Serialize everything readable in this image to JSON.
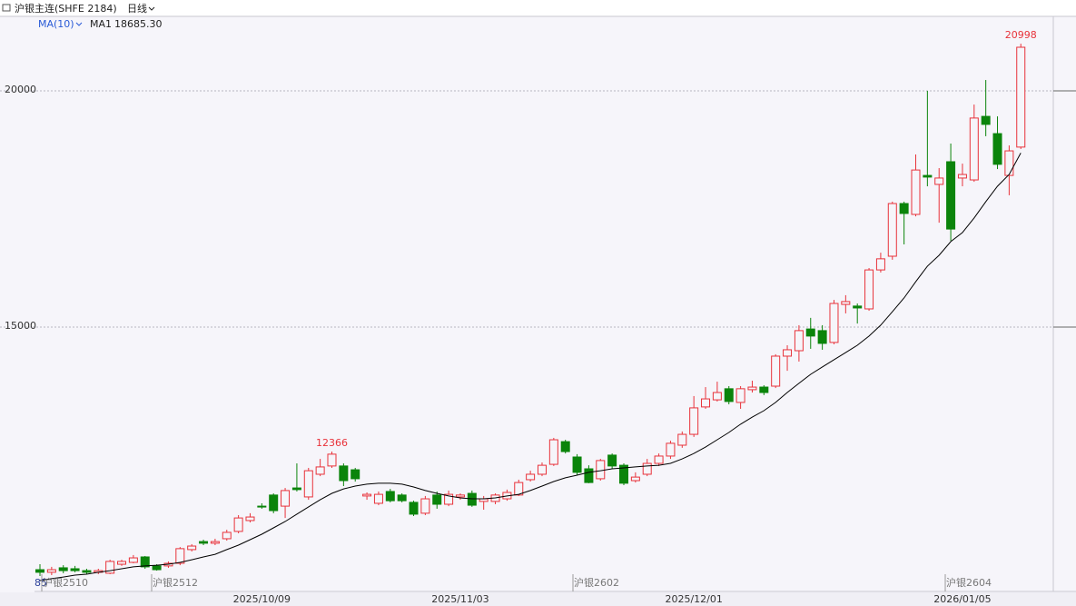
{
  "chart_data": {
    "type": "candlestick",
    "title": "沪银主连(SHFE 2184)",
    "period": "日线",
    "indicator": "MA(10)",
    "ma_name": "MA1",
    "ma_label": "18685.30",
    "categories": [
      null,
      null,
      null,
      null,
      null,
      null,
      null,
      null,
      null,
      null,
      null,
      null,
      null,
      null,
      null,
      null,
      null,
      null,
      null,
      "2025/10/09",
      null,
      null,
      null,
      null,
      null,
      null,
      null,
      null,
      null,
      null,
      null,
      null,
      null,
      null,
      null,
      null,
      "2025/11/03",
      null,
      null,
      null,
      null,
      null,
      null,
      null,
      null,
      null,
      null,
      null,
      null,
      null,
      null,
      null,
      null,
      null,
      null,
      null,
      "2025/12/01",
      null,
      null,
      null,
      null,
      null,
      null,
      null,
      null,
      null,
      null,
      null,
      null,
      null,
      null,
      null,
      null,
      null,
      null,
      null,
      null,
      null,
      null,
      "2026/01/05",
      null,
      null,
      null,
      null,
      null
    ],
    "open": [
      9865,
      9810,
      9905,
      9885,
      9845,
      9810,
      9790,
      9980,
      10020,
      10135,
      9945,
      9945,
      10000,
      10290,
      10460,
      10425,
      10520,
      10675,
      10905,
      11210,
      11445,
      11210,
      11595,
      11405,
      11885,
      12060,
      12060,
      11980,
      11425,
      11270,
      11520,
      11445,
      11290,
      11060,
      11445,
      11250,
      11405,
      11480,
      11310,
      11310,
      11365,
      11445,
      11770,
      11885,
      12095,
      12575,
      12250,
      12000,
      11790,
      12290,
      12075,
      11750,
      11885,
      12115,
      12270,
      12500,
      12730,
      13310,
      13460,
      13695,
      13405,
      13675,
      13730,
      13750,
      14385,
      14500,
      14960,
      14925,
      14675,
      15480,
      15445,
      15385,
      16210,
      16500,
      17615,
      17385,
      18210,
      18020,
      18500,
      18155,
      18115,
      19460,
      19095,
      18210,
      18810
    ],
    "high": [
      9980,
      9925,
      9960,
      9945,
      9885,
      9885,
      10075,
      10075,
      10175,
      10155,
      9980,
      10040,
      10345,
      10405,
      10500,
      10520,
      10710,
      11020,
      11060,
      11270,
      11480,
      11595,
      12115,
      12020,
      12210,
      12366,
      12115,
      12020,
      11500,
      11520,
      11575,
      11480,
      11325,
      11425,
      11520,
      11540,
      11480,
      11540,
      11425,
      11480,
      11560,
      11770,
      11960,
      12135,
      12655,
      12615,
      12310,
      12075,
      12210,
      12325,
      12115,
      11925,
      12210,
      12325,
      12595,
      12790,
      13540,
      13730,
      13845,
      13750,
      13750,
      13865,
      13770,
      14425,
      14615,
      15040,
      15195,
      15040,
      15575,
      15675,
      15500,
      16250,
      16575,
      17655,
      17655,
      18655,
      20000,
      18365,
      18885,
      18460,
      19710,
      20230,
      19460,
      18845,
      20998
    ],
    "low": [
      9730,
      9750,
      9790,
      9810,
      9770,
      9770,
      9770,
      9945,
      10000,
      9885,
      9845,
      9905,
      9960,
      10250,
      10385,
      10385,
      10480,
      10635,
      10865,
      11155,
      11060,
      10960,
      11520,
      11345,
      11845,
      12020,
      11635,
      11730,
      11345,
      11230,
      11290,
      11290,
      11000,
      11020,
      11155,
      11210,
      11345,
      11195,
      11135,
      11250,
      11325,
      11425,
      11730,
      11845,
      12060,
      12325,
      11865,
      11695,
      11750,
      12000,
      11655,
      11710,
      11845,
      12060,
      12210,
      12445,
      12675,
      13270,
      13425,
      13365,
      13270,
      13615,
      13560,
      13710,
      14075,
      14270,
      14540,
      14520,
      14635,
      15290,
      15075,
      15345,
      16155,
      16425,
      16750,
      17345,
      17980,
      17210,
      16825,
      17980,
      18075,
      19040,
      18345,
      17790,
      18770
    ],
    "close": [
      9810,
      9865,
      9845,
      9845,
      9810,
      9845,
      10040,
      10040,
      10115,
      9925,
      9865,
      10000,
      10310,
      10365,
      10425,
      10460,
      10655,
      10960,
      10980,
      11195,
      11115,
      11540,
      11560,
      11960,
      12040,
      12310,
      11750,
      11790,
      11460,
      11460,
      11325,
      11325,
      11040,
      11365,
      11250,
      11460,
      11445,
      11230,
      11365,
      11445,
      11500,
      11710,
      11885,
      12075,
      12615,
      12365,
      11925,
      11710,
      12175,
      12060,
      11695,
      11825,
      12115,
      12270,
      12540,
      12730,
      13290,
      13480,
      13615,
      13425,
      13695,
      13730,
      13615,
      14385,
      14520,
      14925,
      14810,
      14655,
      15500,
      15540,
      15405,
      16210,
      16445,
      17615,
      17405,
      18325,
      18175,
      18155,
      17075,
      18230,
      19425,
      19290,
      18445,
      18730,
      20923
    ],
    "ma": [
      9635,
      9675,
      9710,
      9750,
      9770,
      9810,
      9845,
      9885,
      9925,
      9945,
      9960,
      9980,
      10020,
      10075,
      10135,
      10190,
      10290,
      10385,
      10500,
      10615,
      10750,
      10885,
      11040,
      11195,
      11345,
      11480,
      11575,
      11635,
      11675,
      11695,
      11695,
      11675,
      11615,
      11540,
      11480,
      11425,
      11385,
      11365,
      11365,
      11385,
      11425,
      11460,
      11540,
      11635,
      11730,
      11810,
      11865,
      11925,
      11960,
      12000,
      12020,
      12040,
      12060,
      12075,
      12115,
      12210,
      12325,
      12460,
      12615,
      12770,
      12945,
      13095,
      13230,
      13405,
      13615,
      13810,
      14000,
      14155,
      14310,
      14460,
      14615,
      14810,
      15040,
      15325,
      15615,
      15960,
      16290,
      16520,
      16810,
      17000,
      17310,
      17655,
      17980,
      18230,
      18685.3
    ],
    "up_color": "#e8323a",
    "down_color": "#0b840b",
    "ma_color": "#000000",
    "ylim": [
      9404,
      21577
    ],
    "yticks": [
      15000,
      20000
    ],
    "grid": true,
    "annotations": [
      "85",
      "沪银2510",
      "沪银2512",
      "沪银2602",
      "沪银2604"
    ]
  }
}
